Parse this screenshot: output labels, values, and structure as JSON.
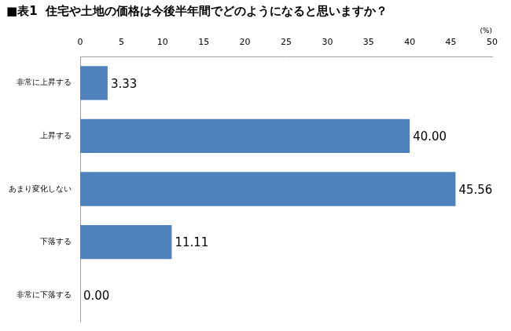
{
  "chart_data": {
    "type": "bar",
    "title": "■表1  住宅や土地の価格は今後半年間でどのようになると思いますか？",
    "xlabel": "(%)",
    "orientation": "horizontal",
    "categories": [
      "非常に上昇する",
      "上昇する",
      "あまり変化しない",
      "下落する",
      "非常に下落する"
    ],
    "values": [
      3.33,
      40.0,
      45.56,
      11.11,
      0.0
    ],
    "value_labels": [
      "3.33",
      "40.00",
      "45.56",
      "11.11",
      "0.00"
    ],
    "data_labels": true,
    "color": "#4f81bd",
    "xlim": [
      0,
      50
    ],
    "xticks": [
      0,
      5,
      10,
      15,
      20,
      25,
      30,
      35,
      40,
      45,
      50
    ],
    "grid": false
  }
}
